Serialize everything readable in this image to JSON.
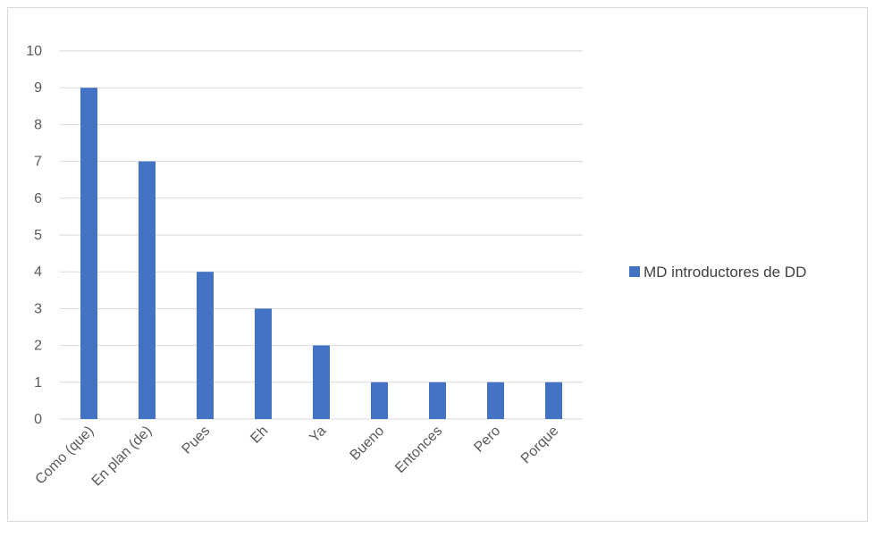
{
  "chart_data": {
    "type": "bar",
    "categories": [
      "Como (que)",
      "En plan (de)",
      "Pues",
      "Eh",
      "Ya",
      "Bueno",
      "Entonces",
      "Pero",
      "Porque"
    ],
    "series": [
      {
        "name": "MD introductores de DD",
        "values": [
          9,
          7,
          4,
          3,
          2,
          1,
          1,
          1,
          1
        ],
        "color": "#4472c4"
      }
    ],
    "ylim": [
      0,
      10
    ],
    "yticks": [
      0,
      1,
      2,
      3,
      4,
      5,
      6,
      7,
      8,
      9,
      10
    ],
    "grid": true,
    "gridColor": "#d9d9d9",
    "legend_position": "right"
  }
}
